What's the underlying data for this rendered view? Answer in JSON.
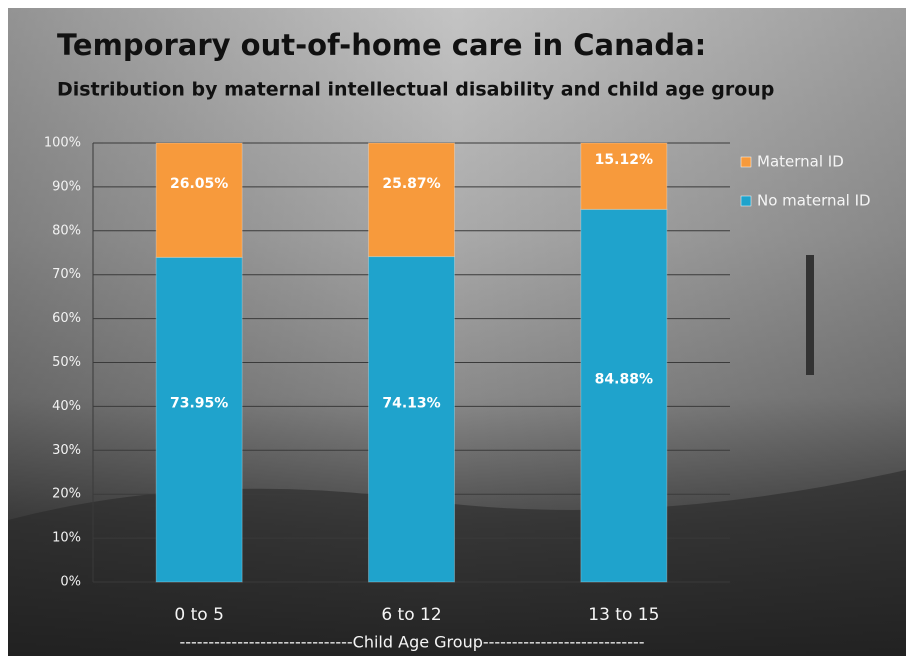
{
  "chart_data": {
    "type": "stacked-bar",
    "title": "Temporary out-of-home care in Canada:",
    "subtitle": "Distribution by maternal intellectual disability and child age group",
    "x_label": "------------------------------Child Age Group----------------------------",
    "categories": [
      "0 to 5",
      "6 to 12",
      "13 to 15"
    ],
    "series": [
      {
        "name": "No maternal ID",
        "color": "#1fa3cc",
        "values": [
          73.95,
          74.13,
          84.88
        ],
        "value_labels": [
          "73.95%",
          "74.13%",
          "84.88%"
        ]
      },
      {
        "name": "Maternal ID",
        "color": "#f79a3c",
        "values": [
          26.05,
          25.87,
          15.12
        ],
        "value_labels": [
          "26.05%",
          "25.87%",
          "15.12%"
        ]
      }
    ],
    "ylim": [
      0,
      100
    ],
    "yticks": [
      {
        "value": 0,
        "label": "0%"
      },
      {
        "value": 10,
        "label": "10%"
      },
      {
        "value": 20,
        "label": "20%"
      },
      {
        "value": 30,
        "label": "30%"
      },
      {
        "value": 40,
        "label": "40%"
      },
      {
        "value": 50,
        "label": "50%"
      },
      {
        "value": 60,
        "label": "60%"
      },
      {
        "value": 70,
        "label": "70%"
      },
      {
        "value": 80,
        "label": "80%"
      },
      {
        "value": 90,
        "label": "90%"
      },
      {
        "value": 100,
        "label": "100%"
      }
    ],
    "grid": true,
    "legend": "right"
  }
}
